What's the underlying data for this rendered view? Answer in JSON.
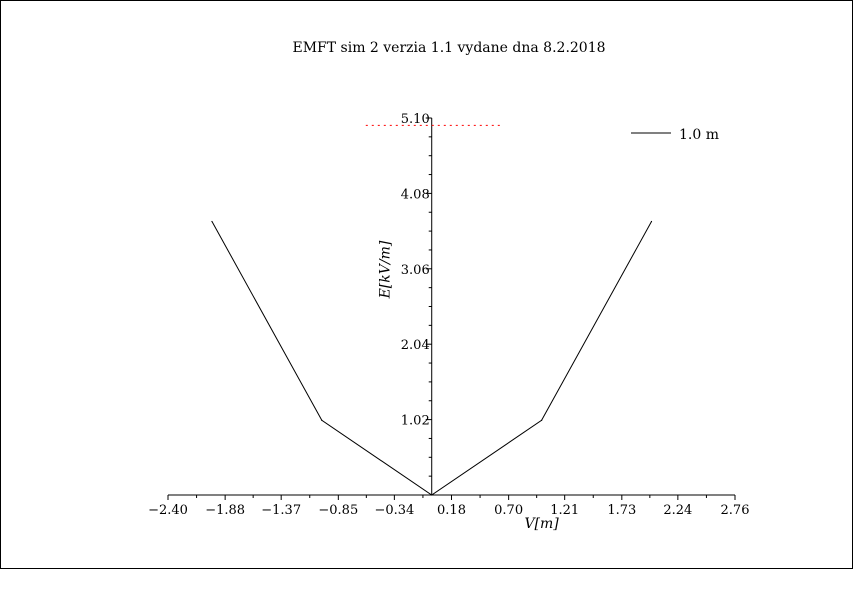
{
  "chart_data": {
    "type": "line",
    "title": "EMFT sim 2 verzia 1.1 vydane dna 8.2.2018",
    "xlabel": "V[m]",
    "ylabel": "E[kV/m]",
    "xlim": [
      -2.4,
      2.76
    ],
    "ylim": [
      0,
      5.1
    ],
    "x_ticks": [
      -2.4,
      -1.88,
      -1.37,
      -0.85,
      -0.34,
      0.18,
      0.7,
      1.21,
      1.73,
      2.24,
      2.76
    ],
    "x_tick_labels": [
      "−2.40",
      "−1.88",
      "−1.37",
      "−0.85",
      "−0.34",
      "0.18",
      "0.70",
      "1.21",
      "1.73",
      "2.24",
      "2.76"
    ],
    "y_ticks": [
      1.02,
      2.04,
      3.06,
      4.08,
      5.1
    ],
    "y_tick_labels": [
      "1.02",
      "2.04",
      "3.06",
      "4.08",
      "5.10"
    ],
    "series": [
      {
        "name": "1.0 m",
        "color": "#000000",
        "x": [
          -2.0,
          -1.0,
          0.0,
          1.0,
          2.0
        ],
        "y": [
          3.7,
          1.01,
          0.0,
          1.01,
          3.7
        ]
      }
    ],
    "reference_line": {
      "y": 5.0,
      "x_range": [
        -0.6,
        0.65
      ],
      "color": "#ff0000",
      "style": "dotted"
    },
    "legend": {
      "position": "top-right"
    },
    "grid": false
  }
}
